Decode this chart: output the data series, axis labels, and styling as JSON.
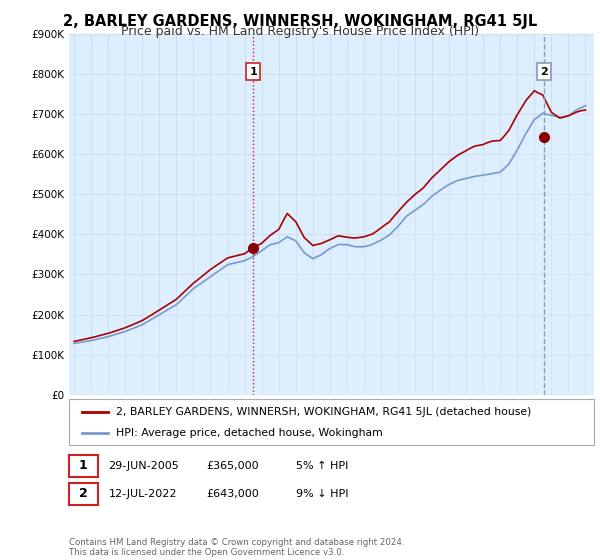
{
  "title": "2, BARLEY GARDENS, WINNERSH, WOKINGHAM, RG41 5JL",
  "subtitle": "Price paid vs. HM Land Registry's House Price Index (HPI)",
  "legend_label_red": "2, BARLEY GARDENS, WINNERSH, WOKINGHAM, RG41 5JL (detached house)",
  "legend_label_blue": "HPI: Average price, detached house, Wokingham",
  "annotation1_date": "29-JUN-2005",
  "annotation1_price": "£365,000",
  "annotation1_hpi": "5% ↑ HPI",
  "annotation1_year": 2005.5,
  "annotation1_value": 365000,
  "annotation2_date": "12-JUL-2022",
  "annotation2_price": "£643,000",
  "annotation2_hpi": "9% ↓ HPI",
  "annotation2_year": 2022.54,
  "annotation2_value": 643000,
  "footer": "Contains HM Land Registry data © Crown copyright and database right 2024.\nThis data is licensed under the Open Government Licence v3.0.",
  "ylim": [
    0,
    900000
  ],
  "yticks": [
    0,
    100000,
    200000,
    300000,
    400000,
    500000,
    600000,
    700000,
    800000,
    900000
  ],
  "ytick_labels": [
    "£0",
    "£100K",
    "£200K",
    "£300K",
    "£400K",
    "£500K",
    "£600K",
    "£700K",
    "£800K",
    "£900K"
  ],
  "color_red": "#aa0000",
  "color_blue": "#7799cc",
  "color_fill": "#ddeeff",
  "color_dashed1": "#cc2222",
  "color_dashed2": "#8899bb",
  "background_color": "#ffffff",
  "grid_color": "#ccddee",
  "title_fontsize": 10.5,
  "subtitle_fontsize": 9,
  "xlim_start": 1994.7,
  "xlim_end": 2025.5,
  "xtick_years": [
    1995,
    1996,
    1997,
    1998,
    1999,
    2000,
    2001,
    2002,
    2003,
    2004,
    2005,
    2006,
    2007,
    2008,
    2009,
    2010,
    2011,
    2012,
    2013,
    2014,
    2015,
    2016,
    2017,
    2018,
    2019,
    2020,
    2021,
    2022,
    2023,
    2024,
    2025
  ]
}
